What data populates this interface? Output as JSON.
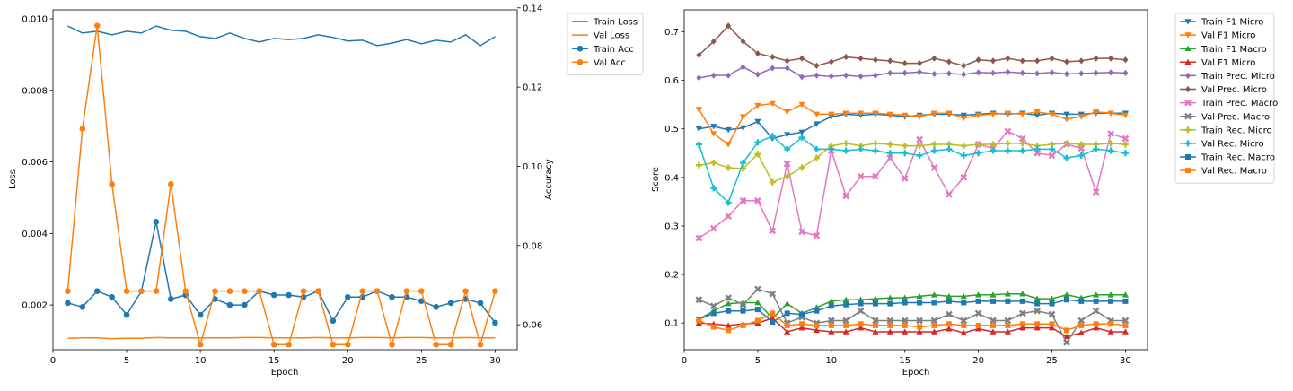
{
  "chart_data": [
    {
      "type": "line",
      "xlabel": "Epoch",
      "ylabel": "Loss",
      "ylabel_right": "Accuracy",
      "xlim": [
        0,
        31.5
      ],
      "ylim": [
        0.00075,
        0.01025
      ],
      "ylim_right": [
        0.0537,
        0.1395
      ],
      "xticks": [
        0,
        5,
        10,
        15,
        20,
        25,
        30
      ],
      "yticks": [
        0.002,
        0.004,
        0.006,
        0.008,
        0.01
      ],
      "yticks_right": [
        0.06,
        0.08,
        0.1,
        0.12,
        0.14
      ],
      "ytick_labels": [
        "0.002",
        "0.004",
        "0.006",
        "0.008",
        "0.010"
      ],
      "ytick_labels_right": [
        "0.06",
        "0.08",
        "0.10",
        "0.12",
        "0.14"
      ],
      "legend_position": "outside-top-right",
      "grid": false,
      "x": [
        1,
        2,
        3,
        4,
        5,
        6,
        7,
        8,
        9,
        10,
        11,
        12,
        13,
        14,
        15,
        16,
        17,
        18,
        19,
        20,
        21,
        22,
        23,
        24,
        25,
        26,
        27,
        28,
        29,
        30
      ],
      "series": [
        {
          "name": "Train Loss",
          "axis": "left",
          "color": "#1f77b4",
          "marker": "none",
          "values": [
            0.0098,
            0.0096,
            0.00965,
            0.00955,
            0.00965,
            0.0096,
            0.0098,
            0.00968,
            0.00965,
            0.0095,
            0.00945,
            0.0096,
            0.00945,
            0.00935,
            0.00945,
            0.00942,
            0.00945,
            0.00955,
            0.00948,
            0.00938,
            0.0094,
            0.00925,
            0.00932,
            0.00942,
            0.0093,
            0.0094,
            0.00935,
            0.00955,
            0.00925,
            0.0095
          ]
        },
        {
          "name": "Val Loss",
          "axis": "left",
          "color": "#ff7f0e",
          "marker": "none",
          "values": [
            0.00107,
            0.00108,
            0.00108,
            0.00106,
            0.00107,
            0.00107,
            0.00109,
            0.00108,
            0.00108,
            0.00108,
            0.00108,
            0.00108,
            0.00109,
            0.00109,
            0.00108,
            0.00108,
            0.00108,
            0.00109,
            0.00108,
            0.00108,
            0.00109,
            0.00109,
            0.00108,
            0.00109,
            0.00109,
            0.00108,
            0.00108,
            0.00109,
            0.00108,
            0.00108
          ]
        },
        {
          "name": "Train Acc",
          "axis": "right",
          "color": "#1f77b4",
          "marker": "circle",
          "values": [
            0.0655,
            0.0645,
            0.0685,
            0.067,
            0.0625,
            0.0685,
            0.086,
            0.0665,
            0.0675,
            0.0625,
            0.0665,
            0.065,
            0.065,
            0.0685,
            0.0675,
            0.0675,
            0.067,
            0.0685,
            0.061,
            0.067,
            0.067,
            0.0685,
            0.067,
            0.067,
            0.066,
            0.0645,
            0.0655,
            0.0665,
            0.0655,
            0.0605
          ]
        },
        {
          "name": "Val Acc",
          "axis": "right",
          "color": "#ff7f0e",
          "marker": "circle",
          "values": [
            0.0685,
            0.1095,
            0.1355,
            0.0955,
            0.0685,
            0.0685,
            0.0685,
            0.0955,
            0.0685,
            0.055,
            0.0685,
            0.0685,
            0.0685,
            0.0685,
            0.055,
            0.055,
            0.0685,
            0.0685,
            0.055,
            0.055,
            0.0685,
            0.0685,
            0.055,
            0.0685,
            0.0685,
            0.055,
            0.055,
            0.0685,
            0.055,
            0.0685
          ]
        }
      ]
    },
    {
      "type": "line",
      "xlabel": "Epoch",
      "ylabel": "Score",
      "xlim": [
        0,
        31.5
      ],
      "ylim": [
        0.045,
        0.745
      ],
      "xticks": [
        0,
        5,
        10,
        15,
        20,
        25,
        30
      ],
      "yticks": [
        0.1,
        0.2,
        0.3,
        0.4,
        0.5,
        0.6,
        0.7
      ],
      "ytick_labels": [
        "0.1",
        "0.2",
        "0.3",
        "0.4",
        "0.5",
        "0.6",
        "0.7"
      ],
      "legend_position": "outside-top-right",
      "grid": false,
      "x": [
        1,
        2,
        3,
        4,
        5,
        6,
        7,
        8,
        9,
        10,
        11,
        12,
        13,
        14,
        15,
        16,
        17,
        18,
        19,
        20,
        21,
        22,
        23,
        24,
        25,
        26,
        27,
        28,
        29,
        30
      ],
      "series": [
        {
          "name": "Train F1 Micro",
          "color": "#1f77b4",
          "marker": "tri-down",
          "values": [
            0.5,
            0.505,
            0.498,
            0.502,
            0.515,
            0.48,
            0.488,
            0.493,
            0.51,
            0.525,
            0.53,
            0.528,
            0.53,
            0.528,
            0.525,
            0.528,
            0.53,
            0.53,
            0.528,
            0.53,
            0.532,
            0.53,
            0.532,
            0.528,
            0.532,
            0.53,
            0.53,
            0.532,
            0.532,
            0.532
          ]
        },
        {
          "name": "Val F1 Micro",
          "color": "#ff7f0e",
          "marker": "tri-down",
          "values": [
            0.54,
            0.49,
            0.468,
            0.525,
            0.548,
            0.552,
            0.535,
            0.55,
            0.53,
            0.53,
            0.532,
            0.532,
            0.532,
            0.53,
            0.528,
            0.525,
            0.532,
            0.532,
            0.522,
            0.528,
            0.53,
            0.532,
            0.53,
            0.535,
            0.53,
            0.52,
            0.525,
            0.535,
            0.532,
            0.528
          ]
        },
        {
          "name": "Train F1 Macro",
          "color": "#2ca02c",
          "marker": "tri-up",
          "values": [
            0.108,
            0.125,
            0.14,
            0.142,
            0.142,
            0.11,
            0.14,
            0.12,
            0.132,
            0.145,
            0.148,
            0.148,
            0.15,
            0.152,
            0.152,
            0.155,
            0.158,
            0.155,
            0.155,
            0.158,
            0.158,
            0.16,
            0.16,
            0.15,
            0.15,
            0.158,
            0.152,
            0.158,
            0.158,
            0.158
          ]
        },
        {
          "name": "Val F1 Micro",
          "color": "#d62728",
          "marker": "tri-up",
          "values": [
            0.1,
            0.098,
            0.095,
            0.098,
            0.1,
            0.11,
            0.082,
            0.09,
            0.085,
            0.082,
            0.082,
            0.09,
            0.082,
            0.082,
            0.082,
            0.082,
            0.082,
            0.088,
            0.08,
            0.088,
            0.082,
            0.082,
            0.09,
            0.09,
            0.09,
            0.072,
            0.08,
            0.09,
            0.082,
            0.082
          ]
        },
        {
          "name": "Train Prec. Micro",
          "color": "#9467bd",
          "marker": "diamond",
          "values": [
            0.605,
            0.61,
            0.61,
            0.627,
            0.612,
            0.625,
            0.625,
            0.607,
            0.61,
            0.608,
            0.61,
            0.608,
            0.61,
            0.615,
            0.615,
            0.617,
            0.613,
            0.614,
            0.612,
            0.616,
            0.615,
            0.617,
            0.615,
            0.614,
            0.616,
            0.613,
            0.614,
            0.615,
            0.616,
            0.615
          ]
        },
        {
          "name": "Val Prec. Micro",
          "color": "#8c564b",
          "marker": "diamond",
          "values": [
            0.652,
            0.68,
            0.712,
            0.68,
            0.655,
            0.648,
            0.64,
            0.645,
            0.63,
            0.638,
            0.648,
            0.645,
            0.642,
            0.64,
            0.635,
            0.635,
            0.645,
            0.638,
            0.63,
            0.642,
            0.64,
            0.645,
            0.64,
            0.64,
            0.645,
            0.638,
            0.64,
            0.645,
            0.645,
            0.642
          ]
        },
        {
          "name": "Train Prec. Macro",
          "color": "#e377c2",
          "marker": "cross",
          "values": [
            0.275,
            0.295,
            0.32,
            0.352,
            0.352,
            0.29,
            0.428,
            0.288,
            0.28,
            0.455,
            0.362,
            0.402,
            0.402,
            0.44,
            0.398,
            0.478,
            0.42,
            0.365,
            0.4,
            0.468,
            0.46,
            0.495,
            0.48,
            0.45,
            0.445,
            0.468,
            0.46,
            0.37,
            0.49,
            0.48
          ]
        },
        {
          "name": "Val Prec. Macro",
          "color": "#7f7f7f",
          "marker": "cross",
          "values": [
            0.148,
            0.135,
            0.152,
            0.138,
            0.17,
            0.16,
            0.1,
            0.112,
            0.1,
            0.105,
            0.105,
            0.125,
            0.105,
            0.105,
            0.105,
            0.105,
            0.105,
            0.118,
            0.105,
            0.12,
            0.105,
            0.105,
            0.12,
            0.125,
            0.118,
            0.06,
            0.105,
            0.125,
            0.105,
            0.105
          ]
        },
        {
          "name": "Train Rec. Micro",
          "color": "#bcbd22",
          "marker": "plus",
          "values": [
            0.425,
            0.43,
            0.42,
            0.418,
            0.448,
            0.39,
            0.402,
            0.42,
            0.44,
            0.465,
            0.47,
            0.465,
            0.47,
            0.468,
            0.465,
            0.465,
            0.468,
            0.468,
            0.465,
            0.468,
            0.468,
            0.47,
            0.47,
            0.465,
            0.468,
            0.47,
            0.468,
            0.468,
            0.47,
            0.468
          ]
        },
        {
          "name": "Val Rec. Micro",
          "color": "#17becf",
          "marker": "plus",
          "values": [
            0.468,
            0.378,
            0.348,
            0.43,
            0.472,
            0.485,
            0.458,
            0.482,
            0.458,
            0.458,
            0.455,
            0.458,
            0.455,
            0.45,
            0.45,
            0.445,
            0.455,
            0.458,
            0.445,
            0.45,
            0.455,
            0.455,
            0.455,
            0.458,
            0.458,
            0.44,
            0.445,
            0.458,
            0.455,
            0.45
          ]
        },
        {
          "name": "Train Rec. Macro",
          "color": "#1f77b4",
          "marker": "square",
          "values": [
            0.108,
            0.12,
            0.125,
            0.125,
            0.128,
            0.102,
            0.12,
            0.118,
            0.125,
            0.135,
            0.138,
            0.14,
            0.14,
            0.14,
            0.142,
            0.142,
            0.142,
            0.145,
            0.142,
            0.145,
            0.145,
            0.145,
            0.145,
            0.14,
            0.14,
            0.148,
            0.145,
            0.145,
            0.145,
            0.145
          ]
        },
        {
          "name": "Val Rec. Macro",
          "color": "#ff7f0e",
          "marker": "square",
          "values": [
            0.105,
            0.092,
            0.085,
            0.095,
            0.105,
            0.12,
            0.095,
            0.098,
            0.095,
            0.095,
            0.095,
            0.098,
            0.095,
            0.095,
            0.095,
            0.092,
            0.095,
            0.098,
            0.095,
            0.095,
            0.095,
            0.095,
            0.098,
            0.098,
            0.098,
            0.085,
            0.095,
            0.098,
            0.098,
            0.095
          ]
        }
      ]
    }
  ]
}
